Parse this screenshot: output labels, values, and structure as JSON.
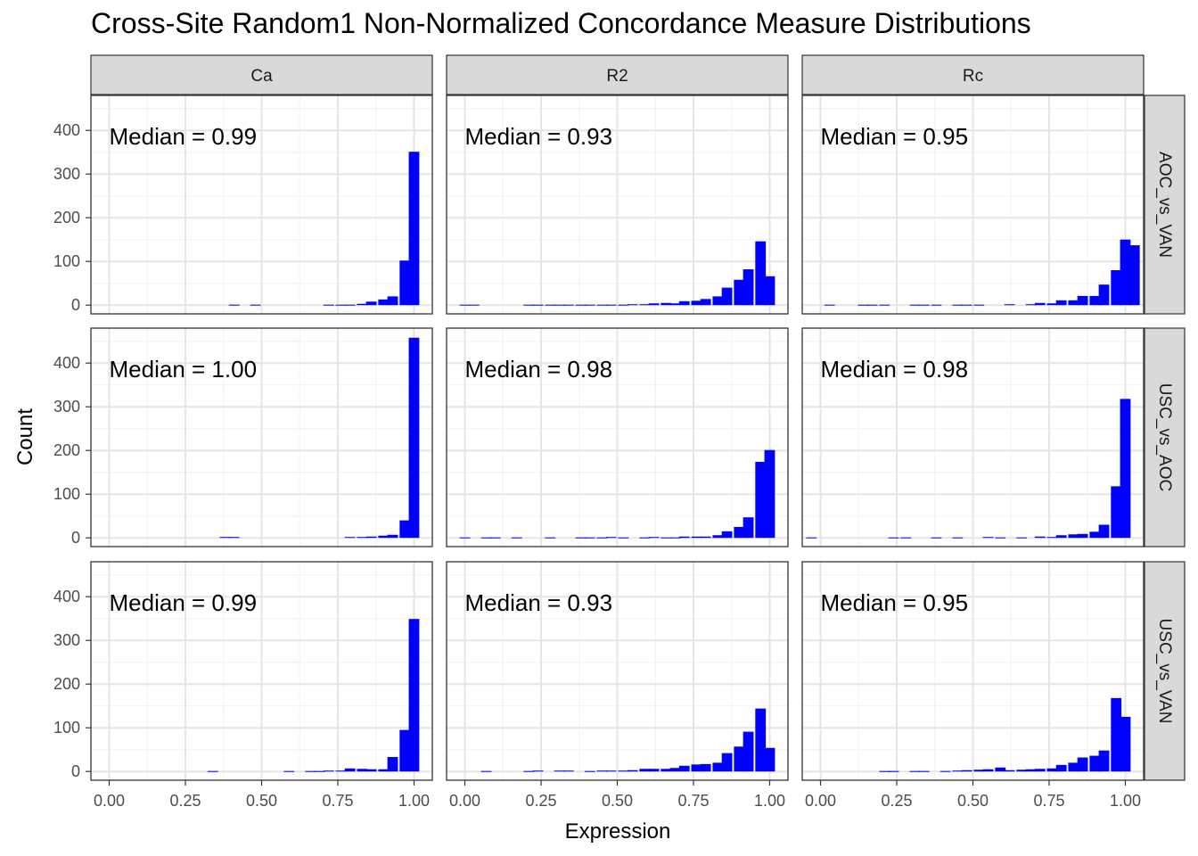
{
  "chart_data": {
    "type": "bar",
    "subtype": "faceted histogram",
    "title": "Cross-Site Random1 Non-Normalized Concordance Measure Distributions",
    "xlabel": "Expression",
    "ylabel": "Count",
    "xlim": [
      -0.06,
      1.06
    ],
    "ylim": [
      -20,
      480
    ],
    "x_ticks": [
      "0.00",
      "0.25",
      "0.50",
      "0.75",
      "1.00"
    ],
    "y_ticks": [
      "0",
      "100",
      "200",
      "300",
      "400"
    ],
    "grid": true,
    "bar_color": "#0000FF",
    "bin_width": 0.0345,
    "columns": [
      "Ca",
      "R2",
      "Rc"
    ],
    "rows": [
      "AOC_vs_VAN",
      "USC_vs_AOC",
      "USC_vs_VAN"
    ],
    "panels": [
      {
        "col": "Ca",
        "row": "AOC_vs_VAN",
        "annotation": "Median = 0.99",
        "bins": [
          [
            0.41,
            1
          ],
          [
            0.48,
            1
          ],
          [
            0.72,
            1
          ],
          [
            0.76,
            1
          ],
          [
            0.79,
            1
          ],
          [
            0.83,
            3
          ],
          [
            0.86,
            8
          ],
          [
            0.9,
            13
          ],
          [
            0.93,
            20
          ],
          [
            0.97,
            102
          ],
          [
            1.0,
            351
          ]
        ]
      },
      {
        "col": "R2",
        "row": "AOC_vs_VAN",
        "annotation": "Median = 0.93",
        "bins": [
          [
            0.0,
            1
          ],
          [
            0.03,
            1
          ],
          [
            0.21,
            1
          ],
          [
            0.24,
            1
          ],
          [
            0.28,
            1
          ],
          [
            0.31,
            1
          ],
          [
            0.34,
            1
          ],
          [
            0.38,
            1
          ],
          [
            0.41,
            1
          ],
          [
            0.45,
            1
          ],
          [
            0.48,
            1
          ],
          [
            0.52,
            1
          ],
          [
            0.55,
            2
          ],
          [
            0.59,
            2
          ],
          [
            0.62,
            4
          ],
          [
            0.66,
            5
          ],
          [
            0.69,
            4
          ],
          [
            0.72,
            9
          ],
          [
            0.76,
            10
          ],
          [
            0.79,
            14
          ],
          [
            0.83,
            20
          ],
          [
            0.86,
            40
          ],
          [
            0.9,
            58
          ],
          [
            0.93,
            82
          ],
          [
            0.97,
            146
          ],
          [
            1.0,
            66
          ]
        ]
      },
      {
        "col": "Rc",
        "row": "AOC_vs_VAN",
        "annotation": "Median = 0.95",
        "bins": [
          [
            0.03,
            1
          ],
          [
            0.14,
            1
          ],
          [
            0.17,
            1
          ],
          [
            0.21,
            1
          ],
          [
            0.31,
            1
          ],
          [
            0.34,
            1
          ],
          [
            0.38,
            1
          ],
          [
            0.45,
            1
          ],
          [
            0.48,
            1
          ],
          [
            0.52,
            1
          ],
          [
            0.62,
            2
          ],
          [
            0.69,
            2
          ],
          [
            0.72,
            5
          ],
          [
            0.76,
            4
          ],
          [
            0.79,
            11
          ],
          [
            0.83,
            11
          ],
          [
            0.86,
            21
          ],
          [
            0.9,
            21
          ],
          [
            0.93,
            47
          ],
          [
            0.97,
            80
          ],
          [
            1.0,
            150
          ],
          [
            1.03,
            137
          ]
        ]
      },
      {
        "col": "Ca",
        "row": "USC_vs_AOC",
        "annotation": "Median = 1.00",
        "bins": [
          [
            0.38,
            2
          ],
          [
            0.41,
            2
          ],
          [
            0.79,
            2
          ],
          [
            0.83,
            2
          ],
          [
            0.86,
            3
          ],
          [
            0.9,
            5
          ],
          [
            0.93,
            7
          ],
          [
            0.97,
            40
          ],
          [
            1.0,
            458
          ]
        ]
      },
      {
        "col": "R2",
        "row": "USC_vs_AOC",
        "annotation": "Median = 0.98",
        "bins": [
          [
            0.0,
            1
          ],
          [
            0.07,
            1
          ],
          [
            0.1,
            1
          ],
          [
            0.17,
            1
          ],
          [
            0.28,
            1
          ],
          [
            0.38,
            1
          ],
          [
            0.41,
            1
          ],
          [
            0.45,
            1
          ],
          [
            0.48,
            2
          ],
          [
            0.52,
            1
          ],
          [
            0.59,
            1
          ],
          [
            0.62,
            2
          ],
          [
            0.66,
            1
          ],
          [
            0.69,
            1
          ],
          [
            0.72,
            3
          ],
          [
            0.76,
            3
          ],
          [
            0.79,
            3
          ],
          [
            0.83,
            6
          ],
          [
            0.86,
            15
          ],
          [
            0.9,
            25
          ],
          [
            0.93,
            47
          ],
          [
            0.97,
            174
          ],
          [
            1.0,
            201
          ]
        ]
      },
      {
        "col": "Rc",
        "row": "USC_vs_AOC",
        "annotation": "Median = 0.98",
        "bins": [
          [
            -0.03,
            1
          ],
          [
            0.24,
            1
          ],
          [
            0.28,
            1
          ],
          [
            0.38,
            1
          ],
          [
            0.45,
            1
          ],
          [
            0.55,
            2
          ],
          [
            0.59,
            1
          ],
          [
            0.66,
            1
          ],
          [
            0.72,
            3
          ],
          [
            0.76,
            2
          ],
          [
            0.79,
            6
          ],
          [
            0.83,
            8
          ],
          [
            0.86,
            9
          ],
          [
            0.9,
            14
          ],
          [
            0.93,
            30
          ],
          [
            0.97,
            118
          ],
          [
            1.0,
            318
          ]
        ]
      },
      {
        "col": "Ca",
        "row": "USC_vs_VAN",
        "annotation": "Median = 0.99",
        "bins": [
          [
            0.34,
            1
          ],
          [
            0.59,
            1
          ],
          [
            0.66,
            1
          ],
          [
            0.69,
            1
          ],
          [
            0.72,
            2
          ],
          [
            0.76,
            2
          ],
          [
            0.79,
            7
          ],
          [
            0.83,
            6
          ],
          [
            0.86,
            5
          ],
          [
            0.9,
            5
          ],
          [
            0.93,
            33
          ],
          [
            0.97,
            95
          ],
          [
            1.0,
            349
          ]
        ]
      },
      {
        "col": "R2",
        "row": "USC_vs_VAN",
        "annotation": "Median = 0.93",
        "bins": [
          [
            0.07,
            1
          ],
          [
            0.21,
            1
          ],
          [
            0.24,
            2
          ],
          [
            0.31,
            2
          ],
          [
            0.34,
            2
          ],
          [
            0.41,
            1
          ],
          [
            0.45,
            2
          ],
          [
            0.48,
            2
          ],
          [
            0.52,
            2
          ],
          [
            0.55,
            3
          ],
          [
            0.59,
            6
          ],
          [
            0.62,
            6
          ],
          [
            0.66,
            6
          ],
          [
            0.69,
            8
          ],
          [
            0.72,
            13
          ],
          [
            0.76,
            16
          ],
          [
            0.79,
            17
          ],
          [
            0.83,
            20
          ],
          [
            0.86,
            42
          ],
          [
            0.9,
            57
          ],
          [
            0.93,
            91
          ],
          [
            0.97,
            144
          ],
          [
            1.0,
            54
          ]
        ]
      },
      {
        "col": "Rc",
        "row": "USC_vs_VAN",
        "annotation": "Median = 0.95",
        "bins": [
          [
            0.21,
            1
          ],
          [
            0.24,
            1
          ],
          [
            0.31,
            1
          ],
          [
            0.34,
            1
          ],
          [
            0.41,
            1
          ],
          [
            0.45,
            2
          ],
          [
            0.48,
            3
          ],
          [
            0.52,
            4
          ],
          [
            0.55,
            5
          ],
          [
            0.59,
            9
          ],
          [
            0.62,
            3
          ],
          [
            0.66,
            4
          ],
          [
            0.69,
            5
          ],
          [
            0.72,
            6
          ],
          [
            0.76,
            7
          ],
          [
            0.79,
            15
          ],
          [
            0.83,
            20
          ],
          [
            0.86,
            32
          ],
          [
            0.9,
            36
          ],
          [
            0.93,
            48
          ],
          [
            0.97,
            168
          ],
          [
            1.0,
            125
          ]
        ]
      }
    ]
  }
}
